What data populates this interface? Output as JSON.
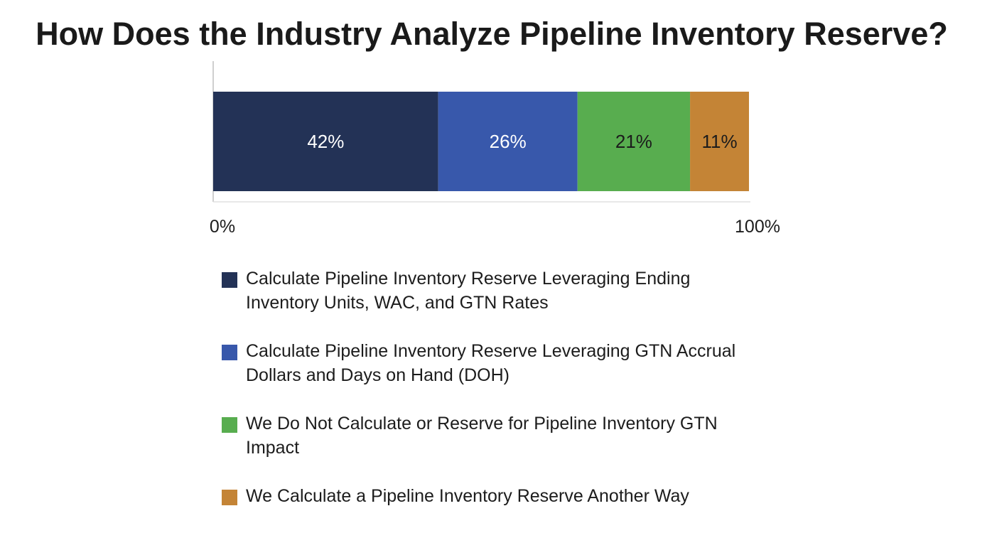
{
  "chart_data": {
    "type": "bar",
    "orientation": "horizontal-stacked",
    "title": "How Does the Industry Analyze Pipeline Inventory Reserve?",
    "xlim": [
      0,
      100
    ],
    "x_tick_labels": [
      "0%",
      "100%"
    ],
    "grid": false,
    "legend_position": "bottom",
    "series": [
      {
        "name": "Calculate Pipeline Inventory Reserve Leveraging Ending Inventory Units, WAC, and GTN Rates",
        "value": 42,
        "label": "42%",
        "color": "#233256",
        "label_color": "#ffffff"
      },
      {
        "name": "Calculate Pipeline Inventory Reserve Leveraging GTN Accrual Dollars and Days on Hand (DOH)",
        "value": 26,
        "label": "26%",
        "color": "#3858ab",
        "label_color": "#ffffff"
      },
      {
        "name": "We Do Not Calculate or Reserve for Pipeline Inventory GTN Impact",
        "value": 21,
        "label": "21%",
        "color": "#58ad4f",
        "label_color": "#1c1c1c"
      },
      {
        "name": "We Calculate a Pipeline Inventory Reserve Another Way",
        "value": 11,
        "label": "11%",
        "color": "#c48436",
        "label_color": "#1c1c1c"
      }
    ]
  }
}
